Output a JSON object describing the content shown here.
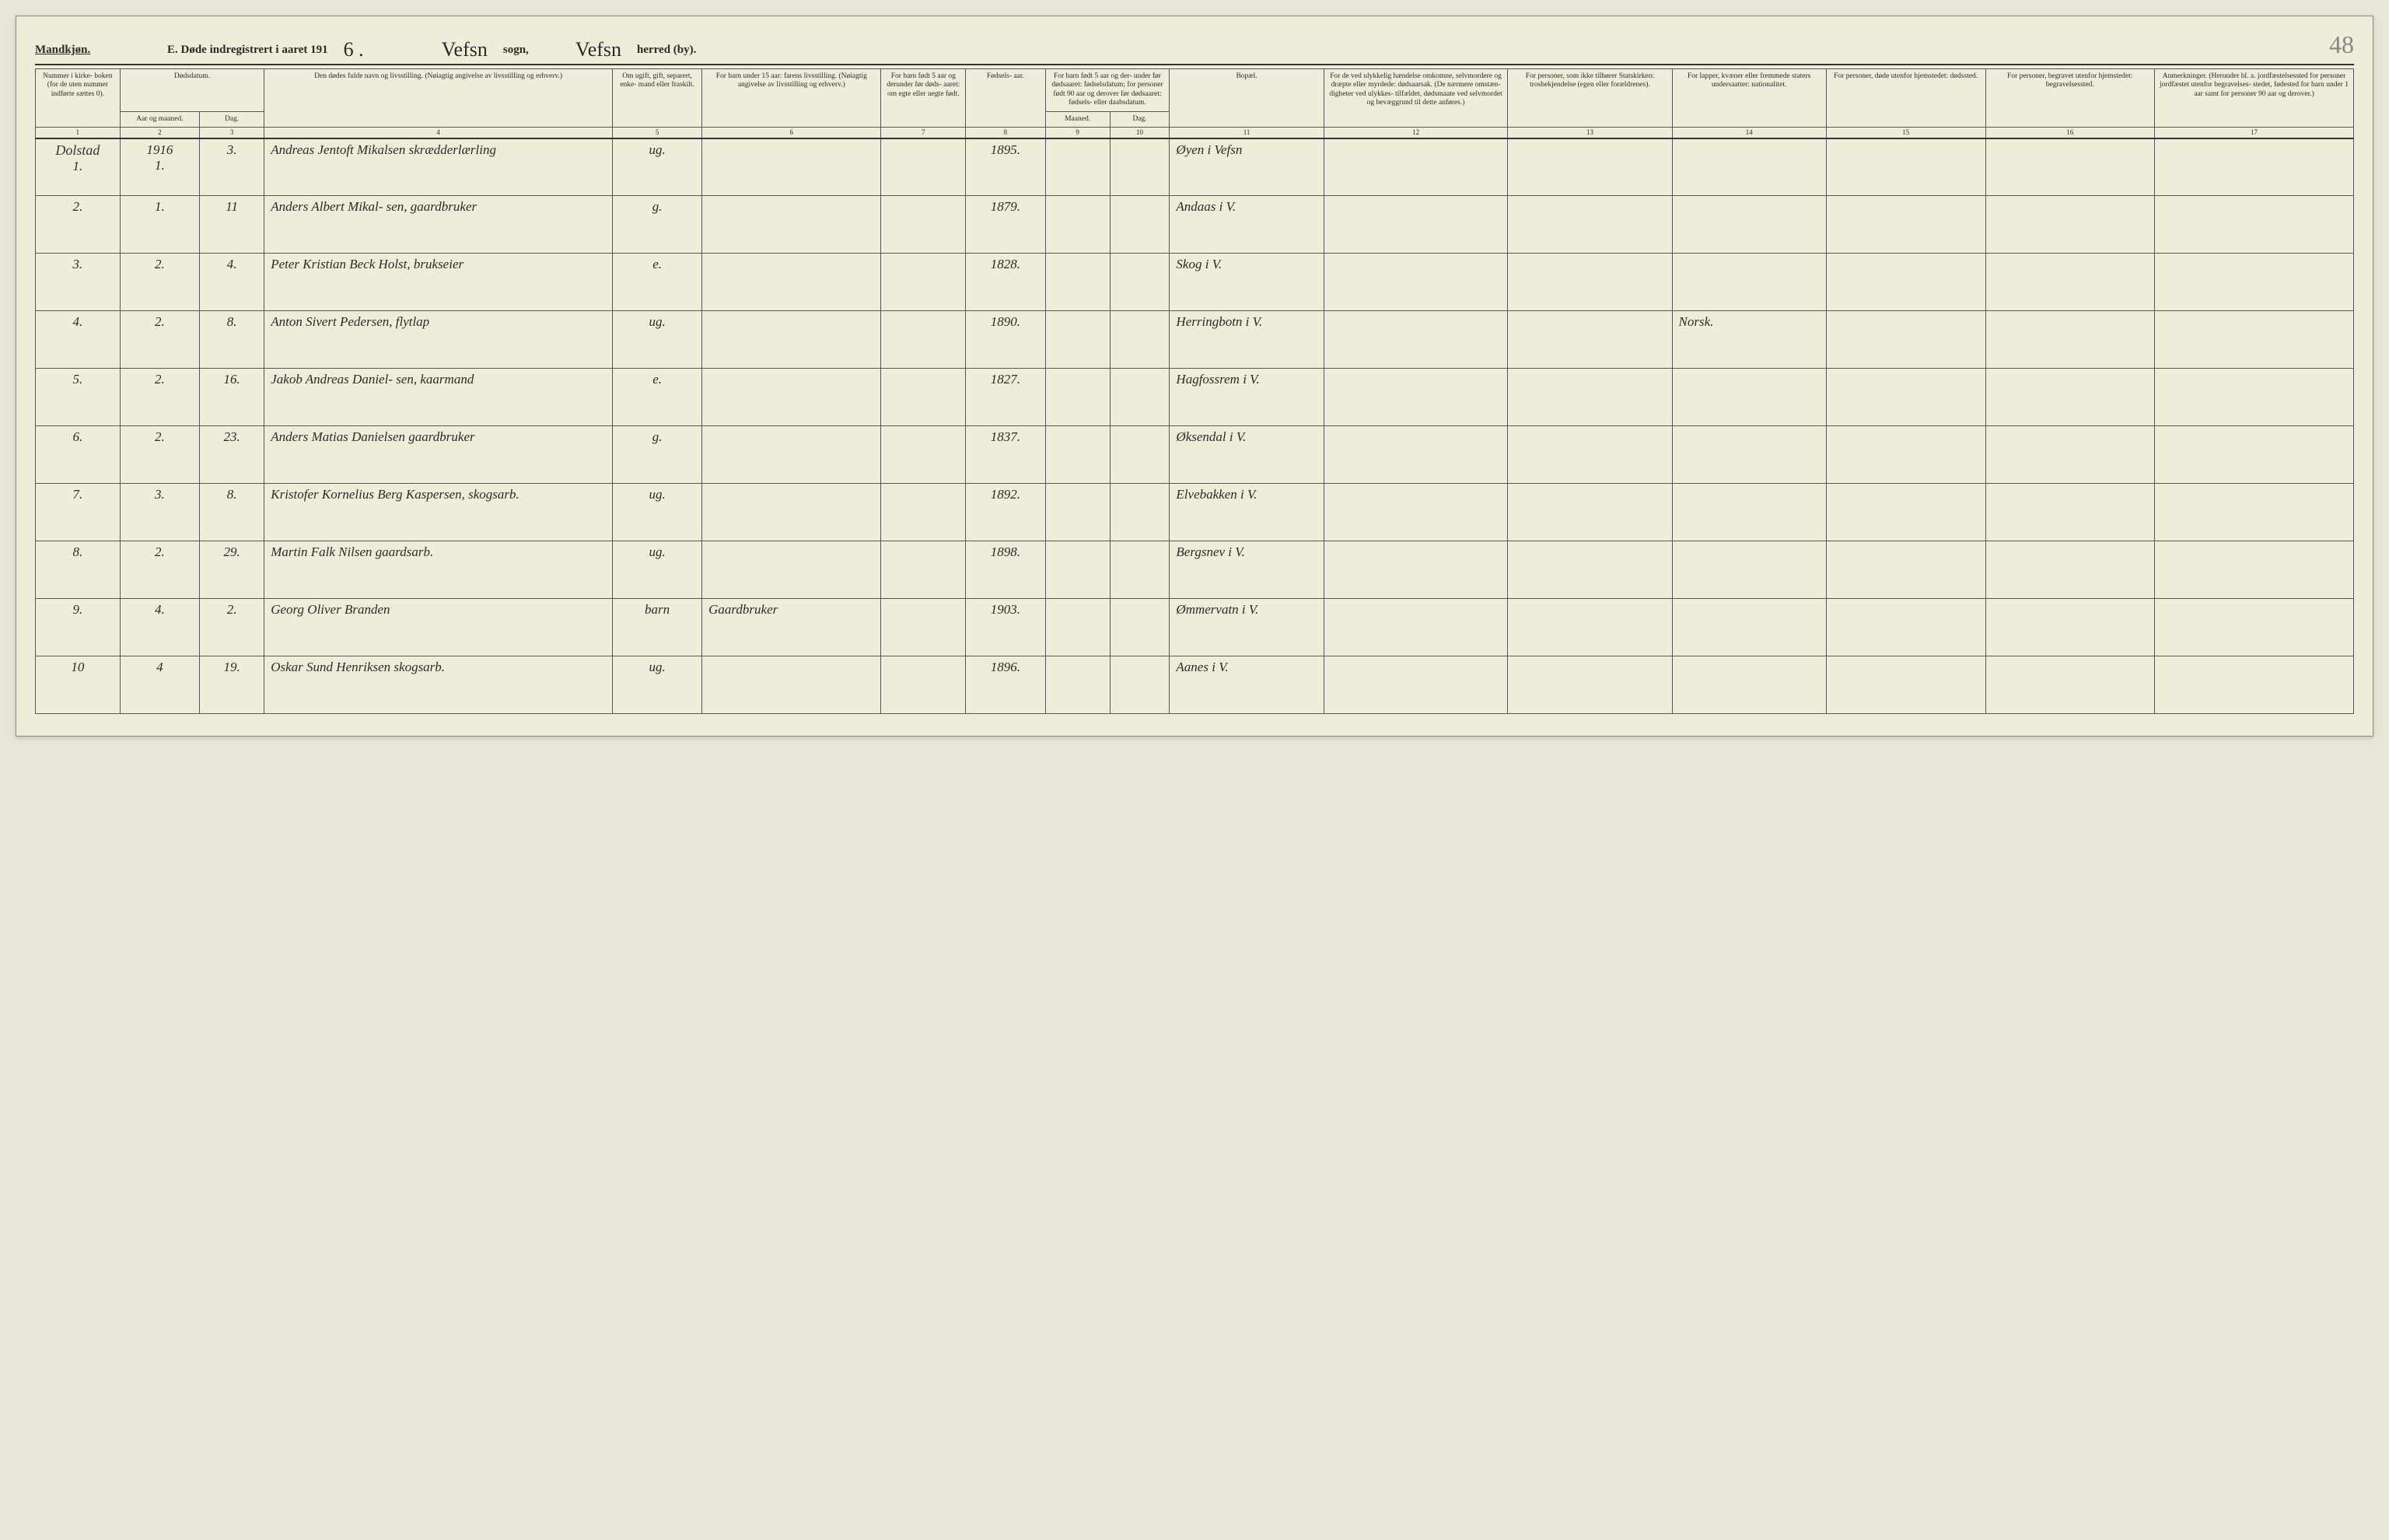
{
  "header": {
    "gender": "Mandkjøn.",
    "title_prefix": "E.  Døde indregistrert i aaret 191",
    "year_suffix": "6 .",
    "sogn_value": "Vefsn",
    "sogn_label": "sogn,",
    "herred_value": "Vefsn",
    "herred_label": "herred (by).",
    "page_number": "48"
  },
  "columns": {
    "c1": "Nummer i kirke- boken (for de uten nummer indførte sættes 0).",
    "c2_group": "Dødsdatum.",
    "c2a": "Aar og maaned.",
    "c2b": "Dag.",
    "c4": "Den dødes fulde navn og livsstilling. (Nøiagtig angivelse av livsstilling og erhverv.)",
    "c5": "Om ugift, gift, separert, enke- mand eller fraskilt.",
    "c6": "For barn under 15 aar: farens livsstilling. (Nøiagtig angivelse av livsstilling og erhverv.)",
    "c7": "For barn født 5 aar og derunder før døds- aaret: om egte eller uegte født.",
    "c8": "Fødsels- aar.",
    "c9_group": "For barn født 5 aar og der- under før dødsaaret: fødselsdatum; for personer født 90 aar og derover før dødsaaret: fødsels- eller daabsdatum.",
    "c9a": "Maaned.",
    "c9b": "Dag.",
    "c11": "Bopæl.",
    "c12": "For de ved ulykkelig hændelse omkomne, selvmordere og dræpte eller myrdede: dødsaarsak. (De nærmere omstæn- digheter ved ulykkes- tilfældet, dødsmaate ved selvmordet og bevæggrund til dette anføres.)",
    "c13": "For personer, som ikke tilhører Statskirken: trosbekjendelse (egen eller forældrenes).",
    "c14": "For lapper, kvæner eller fremmede staters undersaatter: nationalitet.",
    "c15": "For personer, døde utenfor hjemstedet: dødssted.",
    "c16": "For personer, begravet utenfor hjemstedet: begravelsessted.",
    "c17": "Anmerkninger. (Herunder bl. a. jordfæstelsessted for personer jordfæstet utenfor begravelses- stedet, fødested for barn under 1 aar samt for personer 90 aar og derover.)"
  },
  "colnums": [
    "1",
    "2",
    "3",
    "4",
    "5",
    "6",
    "7",
    "8",
    "9",
    "10",
    "11",
    "12",
    "13",
    "14",
    "15",
    "16",
    "17"
  ],
  "parish_note": "Dolstad",
  "year_cell": "1916",
  "rows": [
    {
      "num": "1.",
      "aar": "1.",
      "dag": "3.",
      "name": "Andreas Jentoft Mikalsen skrædderlærling",
      "status": "ug.",
      "faren": "",
      "barn5": "",
      "fods": "1895.",
      "mnd": "",
      "dag2": "",
      "bopel": "Øyen i Vefsn",
      "ulykke": "",
      "stats": "",
      "nation": "",
      "dodst": "",
      "begr": "",
      "anm": ""
    },
    {
      "num": "2.",
      "aar": "1.",
      "dag": "11",
      "name": "Anders Albert Mikal- sen, gaardbruker",
      "status": "g.",
      "faren": "",
      "barn5": "",
      "fods": "1879.",
      "mnd": "",
      "dag2": "",
      "bopel": "Andaas i V.",
      "ulykke": "",
      "stats": "",
      "nation": "",
      "dodst": "",
      "begr": "",
      "anm": ""
    },
    {
      "num": "3.",
      "aar": "2.",
      "dag": "4.",
      "name": "Peter Kristian Beck Holst, brukseier",
      "status": "e.",
      "faren": "",
      "barn5": "",
      "fods": "1828.",
      "mnd": "",
      "dag2": "",
      "bopel": "Skog i V.",
      "ulykke": "",
      "stats": "",
      "nation": "",
      "dodst": "",
      "begr": "",
      "anm": ""
    },
    {
      "num": "4.",
      "aar": "2.",
      "dag": "8.",
      "name": "Anton Sivert Pedersen, flytlap",
      "status": "ug.",
      "faren": "",
      "barn5": "",
      "fods": "1890.",
      "mnd": "",
      "dag2": "",
      "bopel": "Herringbotn i V.",
      "ulykke": "",
      "stats": "",
      "nation": "Norsk.",
      "dodst": "",
      "begr": "",
      "anm": ""
    },
    {
      "num": "5.",
      "aar": "2.",
      "dag": "16.",
      "name": "Jakob Andreas Daniel- sen, kaarmand",
      "status": "e.",
      "faren": "",
      "barn5": "",
      "fods": "1827.",
      "mnd": "",
      "dag2": "",
      "bopel": "Hagfossrem i V.",
      "ulykke": "",
      "stats": "",
      "nation": "",
      "dodst": "",
      "begr": "",
      "anm": ""
    },
    {
      "num": "6.",
      "aar": "2.",
      "dag": "23.",
      "name": "Anders Matias Danielsen gaardbruker",
      "status": "g.",
      "faren": "",
      "barn5": "",
      "fods": "1837.",
      "mnd": "",
      "dag2": "",
      "bopel": "Øksendal i V.",
      "ulykke": "",
      "stats": "",
      "nation": "",
      "dodst": "",
      "begr": "",
      "anm": ""
    },
    {
      "num": "7.",
      "aar": "3.",
      "dag": "8.",
      "name": "Kristofer Kornelius Berg Kaspersen, skogsarb.",
      "status": "ug.",
      "faren": "",
      "barn5": "",
      "fods": "1892.",
      "mnd": "",
      "dag2": "",
      "bopel": "Elvebakken i V.",
      "ulykke": "",
      "stats": "",
      "nation": "",
      "dodst": "",
      "begr": "",
      "anm": ""
    },
    {
      "num": "8.",
      "aar": "2.",
      "dag": "29.",
      "name": "Martin Falk Nilsen gaardsarb.",
      "status": "ug.",
      "faren": "",
      "barn5": "",
      "fods": "1898.",
      "mnd": "",
      "dag2": "",
      "bopel": "Bergsnev i V.",
      "ulykke": "",
      "stats": "",
      "nation": "",
      "dodst": "",
      "begr": "",
      "anm": ""
    },
    {
      "num": "9.",
      "aar": "4.",
      "dag": "2.",
      "name": "Georg Oliver Branden",
      "status": "barn",
      "faren": "Gaardbruker",
      "barn5": "",
      "fods": "1903.",
      "mnd": "",
      "dag2": "",
      "bopel": "Ømmervatn i V.",
      "ulykke": "",
      "stats": "",
      "nation": "",
      "dodst": "",
      "begr": "",
      "anm": ""
    },
    {
      "num": "10",
      "aar": "4",
      "dag": "19.",
      "name": "Oskar Sund Henriksen skogsarb.",
      "status": "ug.",
      "faren": "",
      "barn5": "",
      "fods": "1896.",
      "mnd": "",
      "dag2": "",
      "bopel": "Aanes i V.",
      "ulykke": "",
      "stats": "",
      "nation": "",
      "dodst": "",
      "begr": "",
      "anm": ""
    }
  ],
  "style": {
    "page_bg": "#efecd9",
    "line_color": "#555",
    "header_border": "#333",
    "script_color": "#333"
  }
}
